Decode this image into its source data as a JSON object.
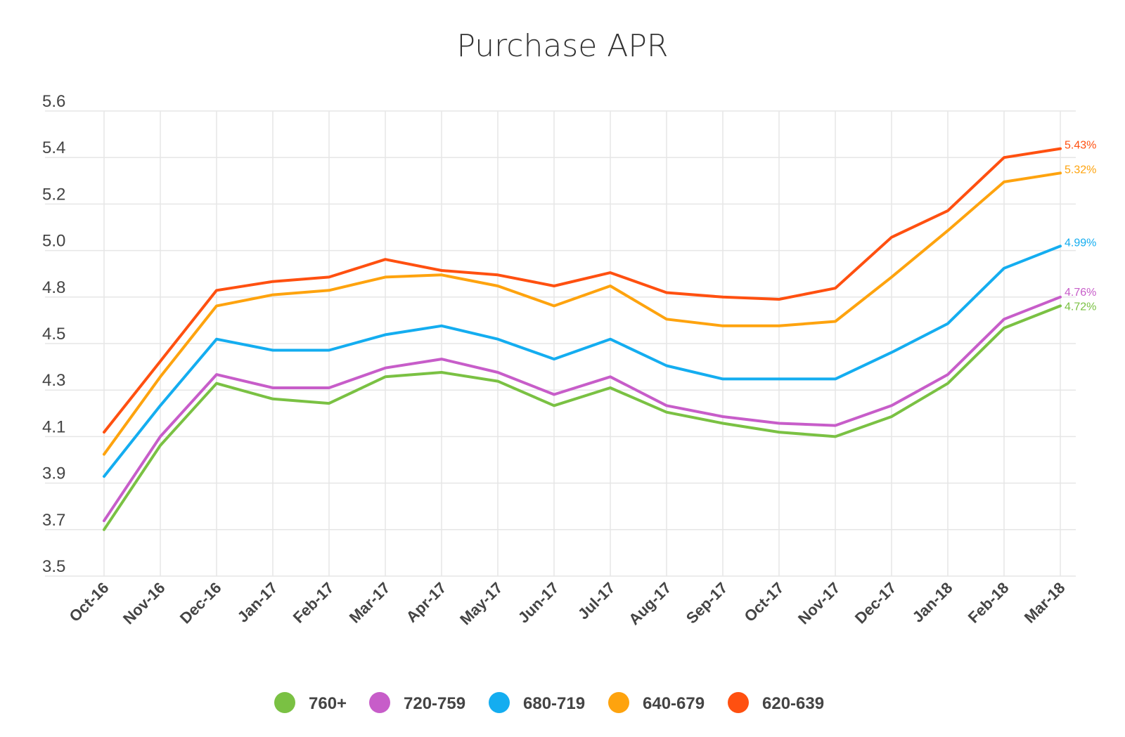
{
  "chart_data": {
    "type": "line",
    "title": "Purchase APR",
    "xlabel": "",
    "ylabel": "",
    "categories": [
      "Oct-16",
      "Nov-16",
      "Dec-16",
      "Jan-17",
      "Feb-17",
      "Mar-17",
      "Apr-17",
      "May-17",
      "Jun-17",
      "Jul-17",
      "Aug-17",
      "Sep-17",
      "Oct-17",
      "Nov-17",
      "Dec-17",
      "Jan-18",
      "Feb-18",
      "Mar-18"
    ],
    "y_ticks": [
      "5.6",
      "5.4",
      "5.2",
      "5.0",
      "4.8",
      "4.5",
      "4.3",
      "4.1",
      "3.9",
      "3.7",
      "3.5"
    ],
    "ylim": [
      3.5,
      5.6
    ],
    "grid": true,
    "legend_position": "bottom",
    "series": [
      {
        "name": "760+",
        "color": "#7ac143",
        "values": [
          3.71,
          4.09,
          4.37,
          4.3,
          4.28,
          4.4,
          4.42,
          4.38,
          4.27,
          4.35,
          4.24,
          4.19,
          4.15,
          4.13,
          4.22,
          4.37,
          4.62,
          4.72
        ],
        "end_label": "4.72%"
      },
      {
        "name": "720-759",
        "color": "#c75dc9",
        "values": [
          3.75,
          4.13,
          4.41,
          4.35,
          4.35,
          4.44,
          4.48,
          4.42,
          4.32,
          4.4,
          4.27,
          4.22,
          4.19,
          4.18,
          4.27,
          4.41,
          4.66,
          4.76
        ],
        "end_label": "4.76%"
      },
      {
        "name": "680-719",
        "color": "#14adf0",
        "values": [
          3.95,
          4.27,
          4.57,
          4.52,
          4.52,
          4.59,
          4.63,
          4.57,
          4.48,
          4.57,
          4.45,
          4.39,
          4.39,
          4.39,
          4.51,
          4.64,
          4.89,
          4.99
        ],
        "end_label": "4.99%"
      },
      {
        "name": "640-679",
        "color": "#fea30e",
        "values": [
          4.05,
          4.4,
          4.72,
          4.77,
          4.79,
          4.85,
          4.86,
          4.81,
          4.72,
          4.81,
          4.66,
          4.63,
          4.63,
          4.65,
          4.85,
          5.06,
          5.28,
          5.32
        ],
        "end_label": "5.32%"
      },
      {
        "name": "620-639",
        "color": "#ff5010",
        "values": [
          4.15,
          4.47,
          4.79,
          4.83,
          4.85,
          4.93,
          4.88,
          4.86,
          4.81,
          4.87,
          4.78,
          4.76,
          4.75,
          4.8,
          5.03,
          5.15,
          5.39,
          5.43
        ],
        "end_label": "5.43%"
      }
    ]
  }
}
